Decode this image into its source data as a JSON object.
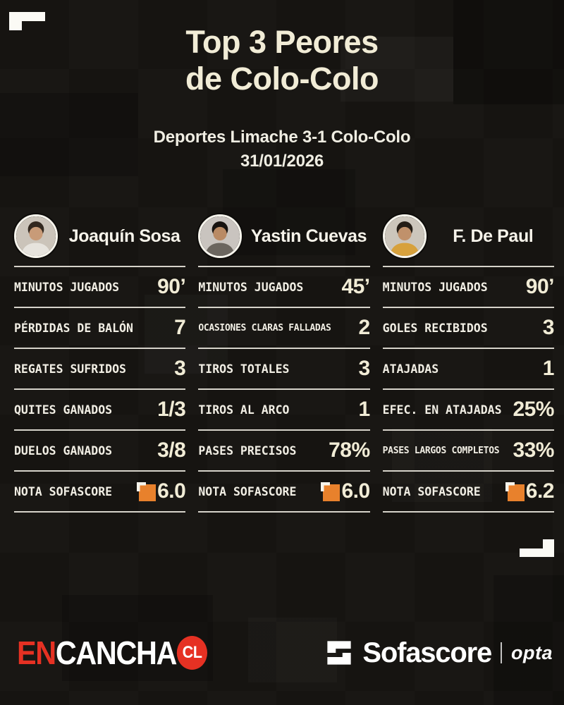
{
  "header": {
    "title_line1": "Top 3 Peores",
    "title_line2": "de Colo-Colo",
    "subtitle_line1": "Deportes Limache 3-1 Colo-Colo",
    "subtitle_line2": "31/01/2026"
  },
  "colors": {
    "accent_orange": "#E8812C",
    "brand_red": "#E63123",
    "cream": "#F1ECD6",
    "line": "#D6D3CA",
    "background": "#161411"
  },
  "players": [
    {
      "name": "Joaquín Sosa",
      "avatar": {
        "bg": "#CBC4BA",
        "skin": "#C89B78",
        "hair": "#32281F",
        "shirt": "#E6E3DD"
      },
      "stats": [
        {
          "label": "MINUTOS JUGADOS",
          "value": "90’"
        },
        {
          "label": "PÉRDIDAS DE BALÓN",
          "value": "7"
        },
        {
          "label": "REGATES SUFRIDOS",
          "value": "3"
        },
        {
          "label": "QUITES GANADOS",
          "value": "1/3"
        },
        {
          "label": "DUELOS GANADOS",
          "value": "3/8"
        },
        {
          "label": "NOTA SOFASCORE",
          "value": "6.0",
          "badge": true
        }
      ]
    },
    {
      "name": "Yastin Cuevas",
      "avatar": {
        "bg": "#C9C4BF",
        "skin": "#B98A64",
        "hair": "#171310",
        "shirt": "#6B665F"
      },
      "stats": [
        {
          "label": "MINUTOS JUGADOS",
          "value": "45’"
        },
        {
          "label": "OCASIONES CLARAS FALLADAS",
          "value": "2"
        },
        {
          "label": "TIROS TOTALES",
          "value": "3"
        },
        {
          "label": "TIROS AL ARCO",
          "value": "1"
        },
        {
          "label": "PASES PRECISOS",
          "value": "78%"
        },
        {
          "label": "NOTA SOFASCORE",
          "value": "6.0",
          "badge": true
        }
      ]
    },
    {
      "name": "F. De Paul",
      "avatar": {
        "bg": "#CCC6BC",
        "skin": "#C0916B",
        "hair": "#241D16",
        "shirt": "#D7A13C"
      },
      "stats": [
        {
          "label": "MINUTOS JUGADOS",
          "value": "90’"
        },
        {
          "label": "GOLES RECIBIDOS",
          "value": "3"
        },
        {
          "label": "ATAJADAS",
          "value": "1"
        },
        {
          "label": "EFEC. EN ATAJADAS",
          "value": "25%"
        },
        {
          "label": "PASES LARGOS COMPLETOS",
          "value": "33%"
        },
        {
          "label": "NOTA SOFASCORE",
          "value": "6.2",
          "badge": true
        }
      ]
    }
  ],
  "footer": {
    "brand_en": "EN",
    "brand_cancha": "CANCHA",
    "brand_badge": "CL",
    "sofascore_label": "Sofascore",
    "opta_label": "opta"
  },
  "chart_data": {
    "type": "table",
    "title": "Top 3 Peores de Colo-Colo",
    "subtitle": "Deportes Limache 3-1 Colo-Colo",
    "date": "31/01/2026",
    "columns": [
      "Joaquín Sosa",
      "Yastin Cuevas",
      "F. De Paul"
    ],
    "rows": [
      {
        "player": "Joaquín Sosa",
        "stats": {
          "Minutos jugados": "90’",
          "Pérdidas de balón": 7,
          "Regates sufridos": 3,
          "Quites ganados": "1/3",
          "Duelos ganados": "3/8",
          "Nota Sofascore": 6.0
        }
      },
      {
        "player": "Yastin Cuevas",
        "stats": {
          "Minutos jugados": "45’",
          "Ocasiones claras falladas": 2,
          "Tiros totales": 3,
          "Tiros al arco": 1,
          "Pases precisos": "78%",
          "Nota Sofascore": 6.0
        }
      },
      {
        "player": "F. De Paul",
        "stats": {
          "Minutos jugados": "90’",
          "Goles recibidos": 3,
          "Atajadas": 1,
          "Efec. en atajadas": "25%",
          "Pases largos completos": "33%",
          "Nota Sofascore": 6.2
        }
      }
    ]
  }
}
